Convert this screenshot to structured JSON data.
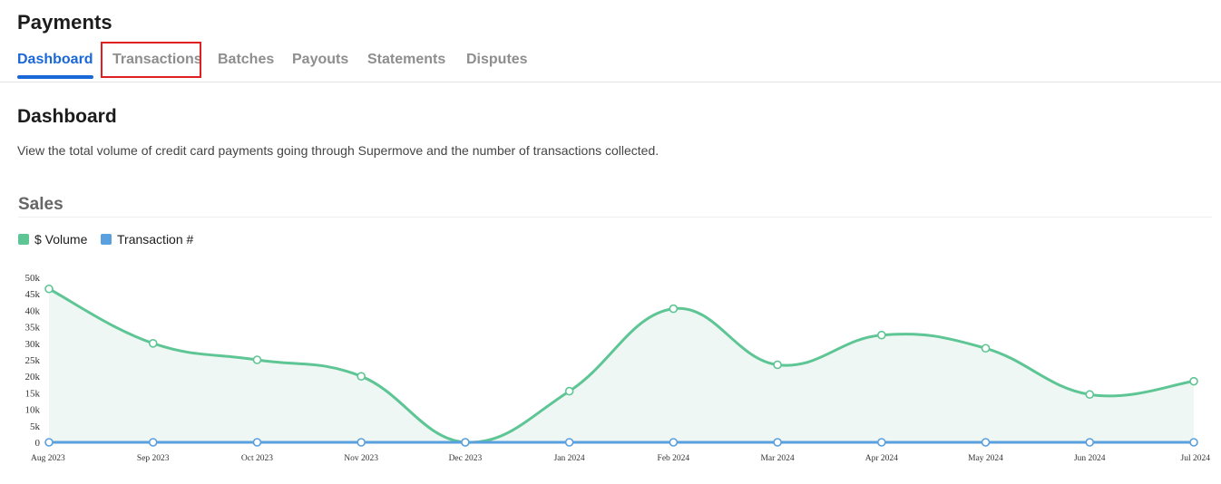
{
  "header": {
    "title": "Payments",
    "tabs": [
      {
        "label": "Dashboard",
        "active": true
      },
      {
        "label": "Transactions",
        "active": false,
        "highlighted": true
      },
      {
        "label": "Batches",
        "active": false
      },
      {
        "label": "Payouts",
        "active": false
      },
      {
        "label": "Statements",
        "active": false
      },
      {
        "label": "Disputes",
        "active": false
      }
    ]
  },
  "main": {
    "title": "Dashboard",
    "description": "View the total volume of credit card payments going through Supermove and the number of transactions collected."
  },
  "sales": {
    "title": "Sales",
    "legend": [
      {
        "label": "$ Volume",
        "color": "#5ec594"
      },
      {
        "label": "Transaction #",
        "color": "#5a9fde"
      }
    ]
  },
  "colors": {
    "accent": "#1a67d8",
    "highlight_border": "#e02020",
    "volume_fill": "#eff7f4"
  },
  "chart_data": {
    "type": "area",
    "categories": [
      "Aug 2023",
      "Sep 2023",
      "Oct 2023",
      "Nov 2023",
      "Dec 2023",
      "Jan 2024",
      "Feb 2024",
      "Mar 2024",
      "Apr 2024",
      "May 2024",
      "Jun 2024",
      "Jul 2024"
    ],
    "y_ticks": [
      "0",
      "5k",
      "10k",
      "15k",
      "20k",
      "25k",
      "30k",
      "35k",
      "40k",
      "45k",
      "50k"
    ],
    "ylim": [
      0,
      50000
    ],
    "series": [
      {
        "name": "$ Volume",
        "color": "#5ec594",
        "values": [
          46500,
          30000,
          25000,
          20000,
          0,
          15500,
          40500,
          23500,
          32500,
          28500,
          14500,
          18500
        ],
        "filled": true
      },
      {
        "name": "Transaction #",
        "color": "#5a9fde",
        "values": [
          0,
          0,
          0,
          0,
          0,
          0,
          0,
          0,
          0,
          0,
          0,
          0
        ],
        "filled": false
      }
    ],
    "legend_position": "top-left",
    "grid": false
  }
}
